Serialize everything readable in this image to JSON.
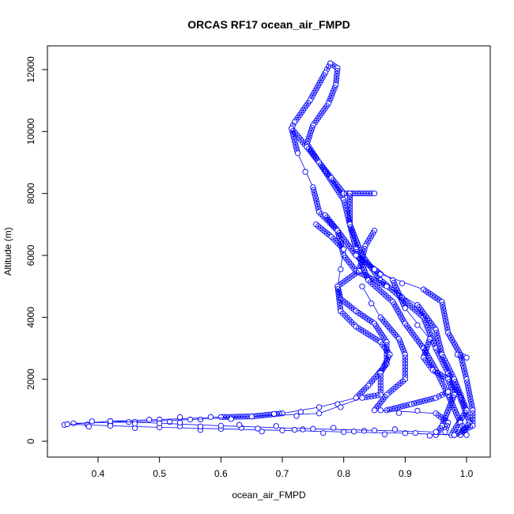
{
  "chart_data": {
    "type": "scatter",
    "title": "ORCAS RF17 ocean_air_FMPD",
    "xlabel": "ocean_air_FMPD",
    "ylabel": "Altitude (m)",
    "xlim": [
      0.33,
      1.04
    ],
    "ylim": [
      -500,
      12700
    ],
    "xticks": [
      0.4,
      0.5,
      0.6,
      0.7,
      0.8,
      0.9,
      1.0
    ],
    "xtick_labels": [
      "0.4",
      "0.5",
      "0.6",
      "0.7",
      "0.8",
      "0.9",
      "1.0"
    ],
    "yticks": [
      0,
      2000,
      4000,
      6000,
      8000,
      10000,
      12000
    ],
    "ytick_labels": [
      "0",
      "2000",
      "4000",
      "6000",
      "8000",
      "10000",
      "12000"
    ],
    "grid": false,
    "marker": "open-circle",
    "plot_style": "points-and-lines",
    "color": "#0000ff",
    "series": [
      {
        "x": [
          0.778,
          0.79,
          0.787,
          0.775,
          0.75,
          0.74,
          0.77,
          0.8,
          0.81,
          0.83,
          0.86,
          0.89,
          0.93,
          0.95,
          0.97,
          0.99,
          1.005,
          0.99
        ],
        "y": [
          12200,
          12050,
          11500,
          10900,
          10200,
          9600,
          8700,
          7800,
          7000,
          6000,
          5200,
          4700,
          4000,
          3000,
          2200,
          1400,
          600,
          200
        ]
      },
      {
        "x": [
          0.778,
          0.77,
          0.745,
          0.72,
          0.715,
          0.725,
          0.75,
          0.76,
          0.79,
          0.8,
          0.82,
          0.87,
          0.92,
          0.95,
          0.96,
          0.98,
          1.0,
          0.975
        ],
        "y": [
          12200,
          11900,
          11000,
          10300,
          10100,
          9300,
          8200,
          7400,
          6800,
          6000,
          5500,
          5000,
          4400,
          3600,
          2800,
          2000,
          1000,
          200
        ]
      },
      {
        "x": [
          0.715,
          0.74,
          0.76,
          0.78,
          0.8,
          0.85
        ],
        "y": [
          10100,
          9500,
          9000,
          8500,
          8000,
          8000
        ]
      },
      {
        "x": [
          0.81,
          0.81,
          0.82,
          0.84,
          0.88,
          0.9,
          0.93,
          0.95,
          0.97,
          0.99,
          1.0
        ],
        "y": [
          8000,
          7000,
          6200,
          5200,
          4500,
          3800,
          3000,
          2300,
          1500,
          600,
          200
        ]
      },
      {
        "x": [
          0.755,
          0.78,
          0.8,
          0.79,
          0.795,
          0.82,
          0.85,
          0.87,
          0.87,
          0.84,
          0.82,
          0.76,
          0.7,
          0.65,
          0.6,
          0.5,
          0.42,
          0.345
        ],
        "y": [
          7000,
          6600,
          6200,
          5000,
          4600,
          4200,
          3800,
          3200,
          2500,
          1800,
          1400,
          1100,
          900,
          800,
          780,
          700,
          650,
          530
        ]
      },
      {
        "x": [
          0.85,
          0.835,
          0.825,
          0.79,
          0.795,
          0.82,
          0.86,
          0.875,
          0.86,
          0.86,
          0.83,
          0.76,
          0.65,
          0.55,
          0.45,
          0.36
        ],
        "y": [
          6800,
          6300,
          5500,
          5000,
          4200,
          3700,
          3200,
          2800,
          2200,
          1500,
          1400,
          900,
          800,
          700,
          620,
          580
        ]
      },
      {
        "x": [
          0.77,
          0.79,
          0.82,
          0.86,
          0.93,
          0.96,
          0.97,
          0.99,
          1.0,
          1.01,
          1.01,
          0.98
        ],
        "y": [
          7300,
          6800,
          6000,
          5400,
          4900,
          4500,
          3500,
          2800,
          2000,
          1000,
          500,
          200
        ]
      },
      {
        "x": [
          0.82,
          0.88,
          0.9,
          0.94,
          0.93,
          0.945,
          0.97,
          0.98,
          0.96,
          0.95
        ],
        "y": [
          6000,
          5200,
          4300,
          3300,
          2700,
          2300,
          2000,
          1500,
          500,
          200
        ]
      },
      {
        "x": [
          0.83,
          0.86,
          0.89,
          0.9,
          0.9,
          0.87,
          0.85
        ],
        "y": [
          5000,
          4000,
          3300,
          2800,
          2000,
          1500,
          1000
        ]
      },
      {
        "x": [
          0.87,
          0.91,
          0.95,
          0.97
        ],
        "y": [
          1000,
          1200,
          1400,
          1600
        ]
      },
      {
        "x": [
          0.86,
          0.95,
          0.97,
          0.965
        ],
        "y": [
          1000,
          900,
          600,
          300
        ]
      },
      {
        "x": [
          0.98,
          0.9,
          0.8,
          0.7,
          0.6,
          0.5,
          0.42,
          0.35
        ],
        "y": [
          200,
          260,
          300,
          350,
          400,
          450,
          500,
          550
        ]
      },
      {
        "x": [
          0.95,
          0.85,
          0.75,
          0.6,
          0.5,
          0.42
        ],
        "y": [
          300,
          350,
          400,
          500,
          580,
          650
        ]
      },
      {
        "x": [
          0.985,
          1.0
        ],
        "y": [
          2800,
          2700
        ]
      }
    ]
  }
}
